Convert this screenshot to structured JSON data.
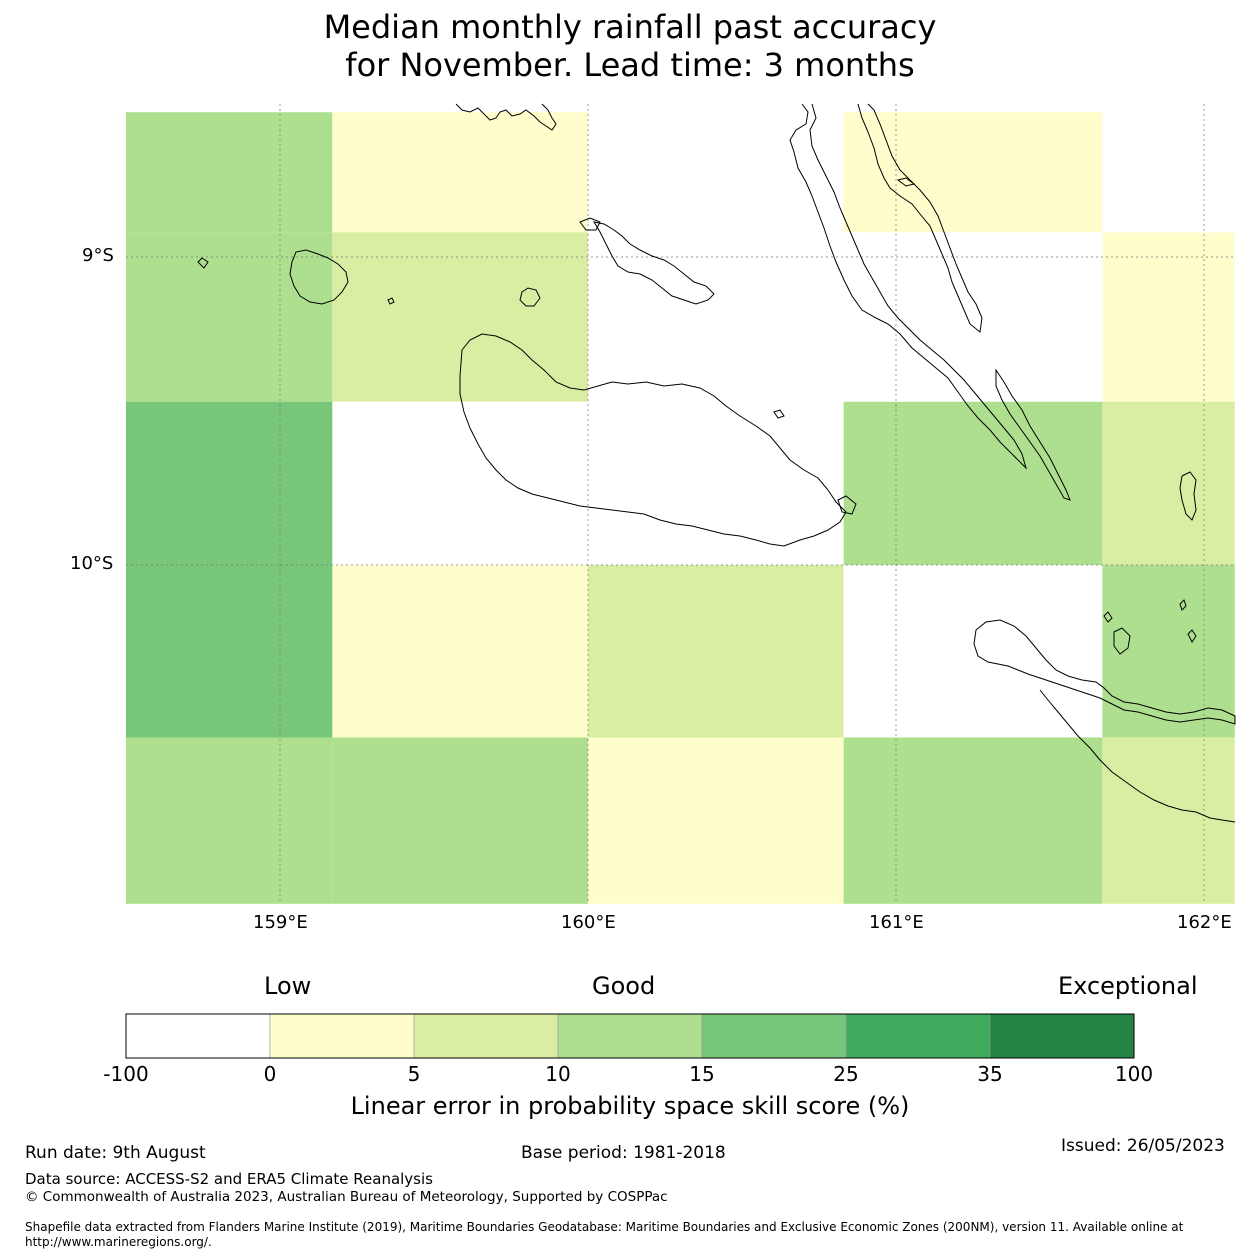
{
  "title_line1": "Median monthly rainfall past accuracy",
  "title_line2": "for November. Lead time: 3 months",
  "map": {
    "lat_ticks": [
      "9°S",
      "10°S"
    ],
    "lon_ticks": [
      "159°E",
      "160°E",
      "161°E",
      "162°E"
    ],
    "grid_lon_columns": [
      158.5,
      159.17,
      160.0,
      160.83,
      161.67,
      162.1
    ],
    "grid_rows": [
      {
        "top": 8.53,
        "bottom": 8.92,
        "categories": [
          "10-15",
          "0-5",
          "-100-0",
          "0-5",
          "-100-0"
        ]
      },
      {
        "top": 8.92,
        "bottom": 9.47,
        "categories": [
          "10-15",
          "5-10",
          "-100-0",
          "-100-0",
          "0-5"
        ]
      },
      {
        "top": 9.47,
        "bottom": 10.0,
        "categories": [
          "15-25",
          "-100-0",
          "-100-0",
          "10-15",
          "5-10"
        ]
      },
      {
        "top": 10.0,
        "bottom": 10.56,
        "categories": [
          "15-25",
          "0-5",
          "5-10",
          "-100-0",
          "10-15"
        ]
      },
      {
        "top": 10.56,
        "bottom": 11.1,
        "categories": [
          "10-15",
          "10-15",
          "0-5",
          "10-15",
          "5-10"
        ]
      }
    ]
  },
  "colorbar": {
    "head_low": "Low",
    "head_good": "Good",
    "head_exceptional": "Exceptional",
    "bins": [
      {
        "from": "-100",
        "to": "0",
        "color": "#ffffff"
      },
      {
        "from": "0",
        "to": "5",
        "color": "#fefdcb"
      },
      {
        "from": "5",
        "to": "10",
        "color": "#d9eea2"
      },
      {
        "from": "10",
        "to": "15",
        "color": "#addf8e"
      },
      {
        "from": "15",
        "to": "25",
        "color": "#78c679"
      },
      {
        "from": "25",
        "to": "35",
        "color": "#41ab5d"
      },
      {
        "from": "35",
        "to": "100",
        "color": "#238443"
      }
    ],
    "ticks": [
      "-100",
      "0",
      "5",
      "10",
      "15",
      "25",
      "35",
      "100"
    ],
    "label": "Linear error in probability space skill score (%)"
  },
  "footer": {
    "run_date": "Run date: 9th August",
    "base_period": "Base period: 1981-2018",
    "issued": "Issued: 26/05/2023",
    "data_source": "Data source: ACCESS-S2 and ERA5 Climate Reanalysis",
    "copyright": "© Commonwealth of Australia 2023, Australian Bureau of Meteorology, Supported by COSPPac",
    "shapefile_line1": "Shapefile data extracted from Flanders Marine Institute (2019), Maritime Boundaries Geodatabase: Maritime Boundaries and Exclusive Economic Zones (200NM), version 11. Available online at",
    "shapefile_line2": "http://www.marineregions.org/."
  }
}
